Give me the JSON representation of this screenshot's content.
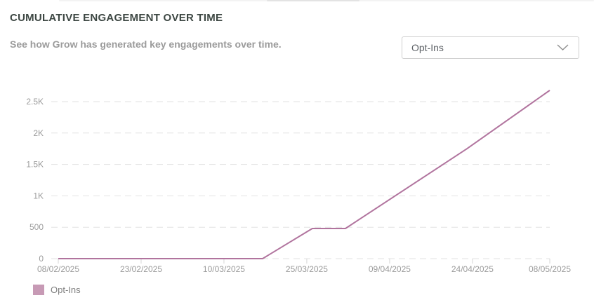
{
  "header": {
    "title": "CUMULATIVE ENGAGEMENT OVER TIME",
    "subtitle": "See how Grow has generated key engagements over time."
  },
  "controls": {
    "metric_dropdown": {
      "value": "Opt-Ins",
      "icon": "chevron-down"
    }
  },
  "chart_data": {
    "type": "line",
    "title": "CUMULATIVE ENGAGEMENT OVER TIME",
    "grid": "horizontal-dashed",
    "grid_color": "#e2e2e2",
    "axis_label_color": "#9c9c9c",
    "tick_color": "#d6d6d6",
    "x_axis": {
      "tick_labels": [
        "08/02/2025",
        "23/02/2025",
        "10/03/2025",
        "25/03/2025",
        "09/04/2025",
        "24/04/2025",
        "08/05/2025"
      ],
      "tick_days": [
        0,
        15,
        30,
        45,
        60,
        75,
        89
      ],
      "range_days": [
        0,
        89
      ]
    },
    "y_axis": {
      "tick_labels": [
        "0",
        "500",
        "1K",
        "1.5K",
        "2K",
        "2.5K"
      ],
      "tick_values": [
        0,
        500,
        1000,
        1500,
        2000,
        2500
      ],
      "range": [
        0,
        2800
      ]
    },
    "series": [
      {
        "name": "Opt-Ins",
        "color": "#b1749e",
        "legend_swatch_color": "#c79ab5",
        "points": [
          {
            "date": "08/02/2025",
            "day": 0,
            "value": 0
          },
          {
            "date": "17/03/2025",
            "day": 37,
            "value": 0
          },
          {
            "date": "26/03/2025",
            "day": 46,
            "value": 480
          },
          {
            "date": "01/04/2025",
            "day": 52,
            "value": 480
          },
          {
            "date": "23/04/2025",
            "day": 74,
            "value": 1750
          },
          {
            "date": "08/05/2025",
            "day": 89,
            "value": 2680
          }
        ]
      }
    ],
    "legend": {
      "position": "bottom-left",
      "items": [
        "Opt-Ins"
      ]
    }
  }
}
